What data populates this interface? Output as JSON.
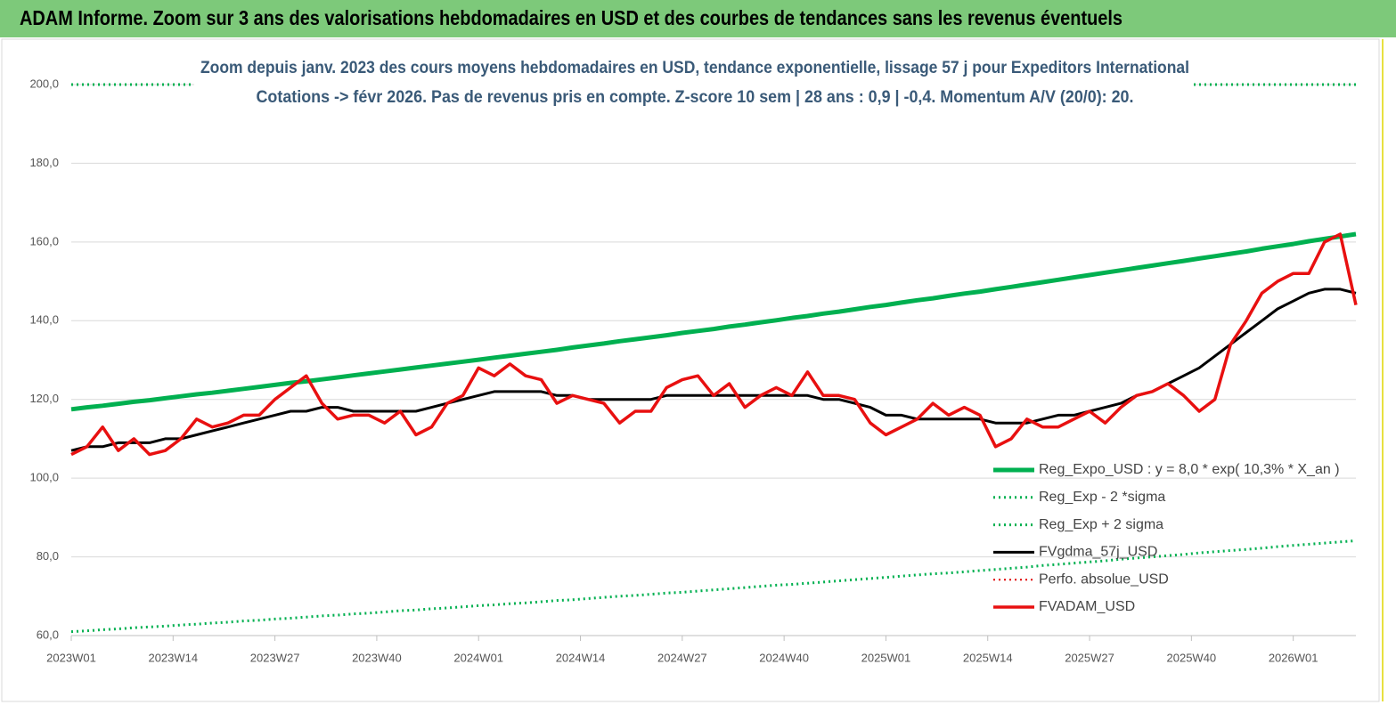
{
  "header": {
    "title": "ADAM Informe. Zoom sur 3 ans des valorisations hebdomadaires en USD et des courbes de tendances sans les revenus éventuels"
  },
  "chart_data": {
    "type": "line",
    "title": "Zoom depuis janv. 2023 des cours moyens hebdomadaires en USD, tendance exponentielle, lissage 57 j pour Expeditors International",
    "subtitle": "Cotations -> févr 2026.  Pas de revenus pris en compte. Z-score 10 sem  | 28 ans : 0,9 | -0,4. Momentum A/V (20/0): 20.",
    "x": [
      0,
      2,
      4,
      6,
      8,
      10,
      12,
      14,
      16,
      18,
      20,
      22,
      24,
      26,
      28,
      30,
      32,
      34,
      36,
      38,
      40,
      42,
      44,
      46,
      48,
      50,
      52,
      54,
      56,
      58,
      60,
      62,
      64,
      66,
      68,
      70,
      72,
      74,
      76,
      78,
      80,
      82,
      84,
      86,
      88,
      90,
      92,
      94,
      96,
      98,
      100,
      102,
      104,
      106,
      108,
      110,
      112,
      114,
      116,
      118,
      120,
      122,
      124,
      126,
      128,
      130,
      132,
      134,
      136,
      138,
      140,
      142,
      144,
      146,
      148,
      150,
      152,
      154,
      156,
      158,
      160,
      162,
      164
    ],
    "xlim": [
      0,
      164
    ],
    "xticks": [
      {
        "value": 0,
        "label": "2023W01"
      },
      {
        "value": 13,
        "label": "2023W14"
      },
      {
        "value": 26,
        "label": "2023W27"
      },
      {
        "value": 39,
        "label": "2023W40"
      },
      {
        "value": 52,
        "label": "2024W01"
      },
      {
        "value": 65,
        "label": "2024W14"
      },
      {
        "value": 78,
        "label": "2024W27"
      },
      {
        "value": 91,
        "label": "2024W40"
      },
      {
        "value": 104,
        "label": "2025W01"
      },
      {
        "value": 117,
        "label": "2025W14"
      },
      {
        "value": 130,
        "label": "2025W27"
      },
      {
        "value": 143,
        "label": "2025W40"
      },
      {
        "value": 156,
        "label": "2026W01"
      }
    ],
    "ylim": [
      60,
      200
    ],
    "yticks": [
      {
        "value": 60,
        "label": "60,0"
      },
      {
        "value": 80,
        "label": "80,0"
      },
      {
        "value": 100,
        "label": "100,0"
      },
      {
        "value": 120,
        "label": "120,0"
      },
      {
        "value": 140,
        "label": "140,0"
      },
      {
        "value": 160,
        "label": "160,0"
      },
      {
        "value": 180,
        "label": "180,0"
      },
      {
        "value": 200,
        "label": "200,0"
      }
    ],
    "grid": true,
    "legend": "lower right",
    "series": [
      {
        "name": "Reg_Expo_USD : y = 8,0  * exp( 10,3% *  X_an )",
        "color": "#00b050",
        "width": 5,
        "dash": "solid",
        "values": [
          117.5,
          118.0,
          118.4,
          118.9,
          119.4,
          119.8,
          120.3,
          120.8,
          121.3,
          121.7,
          122.2,
          122.7,
          123.2,
          123.7,
          124.2,
          124.6,
          125.1,
          125.6,
          126.1,
          126.6,
          127.1,
          127.6,
          128.1,
          128.6,
          129.1,
          129.6,
          130.1,
          130.6,
          131.1,
          131.6,
          132.1,
          132.6,
          133.2,
          133.7,
          134.2,
          134.8,
          135.3,
          135.8,
          136.3,
          136.9,
          137.4,
          137.9,
          138.5,
          139.0,
          139.6,
          140.1,
          140.7,
          141.2,
          141.8,
          142.3,
          142.9,
          143.5,
          144.0,
          144.6,
          145.2,
          145.7,
          146.3,
          146.9,
          147.4,
          148.0,
          148.6,
          149.2,
          149.8,
          150.4,
          151.0,
          151.6,
          152.2,
          152.8,
          153.4,
          154.0,
          154.6,
          155.2,
          155.8,
          156.4,
          157.0,
          157.6,
          158.3,
          158.9,
          159.5,
          160.2,
          160.8,
          161.4,
          162.0
        ]
      },
      {
        "name": "Reg_Exp - 2 *sigma",
        "color": "#00b050",
        "width": 3,
        "dash": "dotted",
        "values": [
          61.0,
          61.2,
          61.5,
          61.7,
          62.0,
          62.2,
          62.4,
          62.7,
          62.9,
          63.2,
          63.4,
          63.7,
          63.9,
          64.2,
          64.4,
          64.7,
          65.0,
          65.2,
          65.5,
          65.7,
          66.0,
          66.3,
          66.5,
          66.8,
          67.0,
          67.3,
          67.6,
          67.8,
          68.1,
          68.3,
          68.6,
          68.9,
          69.1,
          69.4,
          69.7,
          70.0,
          70.2,
          70.5,
          70.8,
          71.0,
          71.3,
          71.6,
          71.9,
          72.2,
          72.5,
          72.8,
          73.0,
          73.3,
          73.6,
          73.9,
          74.2,
          74.5,
          74.8,
          75.1,
          75.4,
          75.7,
          75.9,
          76.2,
          76.5,
          76.8,
          77.1,
          77.4,
          77.8,
          78.1,
          78.4,
          78.7,
          79.0,
          79.4,
          79.7,
          80.0,
          80.3,
          80.6,
          81.0,
          81.3,
          81.6,
          81.9,
          82.2,
          82.6,
          82.9,
          83.2,
          83.5,
          83.8,
          84.1
        ]
      },
      {
        "name": "Reg_Exp + 2 sigma",
        "color": "#00b050",
        "width": 3,
        "dash": "dotted",
        "values": [
          200,
          200,
          200,
          200,
          200,
          200,
          200,
          200,
          200,
          200,
          200,
          200,
          200,
          200,
          200,
          200,
          200,
          200,
          200,
          200,
          200,
          200,
          200,
          200,
          200,
          200,
          200,
          200,
          200,
          200,
          200,
          200,
          200,
          200,
          200,
          200,
          200,
          200,
          200,
          200,
          200,
          200,
          200,
          200,
          200,
          200,
          200,
          200,
          200,
          200,
          200,
          200,
          200,
          200,
          200,
          200,
          200,
          200,
          200,
          200,
          200,
          200,
          200,
          200,
          200,
          200,
          200,
          200,
          200,
          200,
          200,
          200,
          200,
          200,
          200,
          200,
          200,
          200,
          200,
          200,
          200,
          200,
          200
        ]
      },
      {
        "name": "FVgdma_57j_USD",
        "color": "#000000",
        "width": 3,
        "dash": "solid",
        "values": [
          107,
          108,
          108,
          109,
          109,
          109,
          110,
          110,
          111,
          112,
          113,
          114,
          115,
          116,
          117,
          117,
          118,
          118,
          117,
          117,
          117,
          117,
          117,
          118,
          119,
          120,
          121,
          122,
          122,
          122,
          122,
          121,
          121,
          120,
          120,
          120,
          120,
          120,
          121,
          121,
          121,
          121,
          121,
          121,
          121,
          121,
          121,
          121,
          120,
          120,
          119,
          118,
          116,
          116,
          115,
          115,
          115,
          115,
          115,
          114,
          114,
          114,
          115,
          116,
          116,
          117,
          118,
          119,
          121,
          122,
          124,
          126,
          128,
          131,
          134,
          137,
          140,
          143,
          145,
          147,
          148,
          148,
          147
        ]
      },
      {
        "name": "Perfo. absolue_USD",
        "color": "#e00000",
        "width": 2,
        "dash": "dotted"
      },
      {
        "name": "FVADAM_USD",
        "color": "#e81010",
        "width": 3.5,
        "dash": "solid",
        "values": [
          106,
          108,
          113,
          107,
          110,
          106,
          107,
          110,
          115,
          113,
          114,
          116,
          116,
          120,
          123,
          126,
          119,
          115,
          116,
          116,
          114,
          117,
          111,
          113,
          119,
          121,
          128,
          126,
          129,
          126,
          125,
          119,
          121,
          120,
          119,
          114,
          117,
          117,
          123,
          125,
          126,
          121,
          124,
          118,
          121,
          123,
          121,
          127,
          121,
          121,
          120,
          114,
          111,
          113,
          115,
          119,
          116,
          118,
          116,
          108,
          110,
          115,
          113,
          113,
          115,
          117,
          114,
          118,
          121,
          122,
          124,
          121,
          117,
          120,
          134,
          140,
          147,
          150,
          152,
          152,
          160,
          162,
          144
        ]
      }
    ]
  }
}
